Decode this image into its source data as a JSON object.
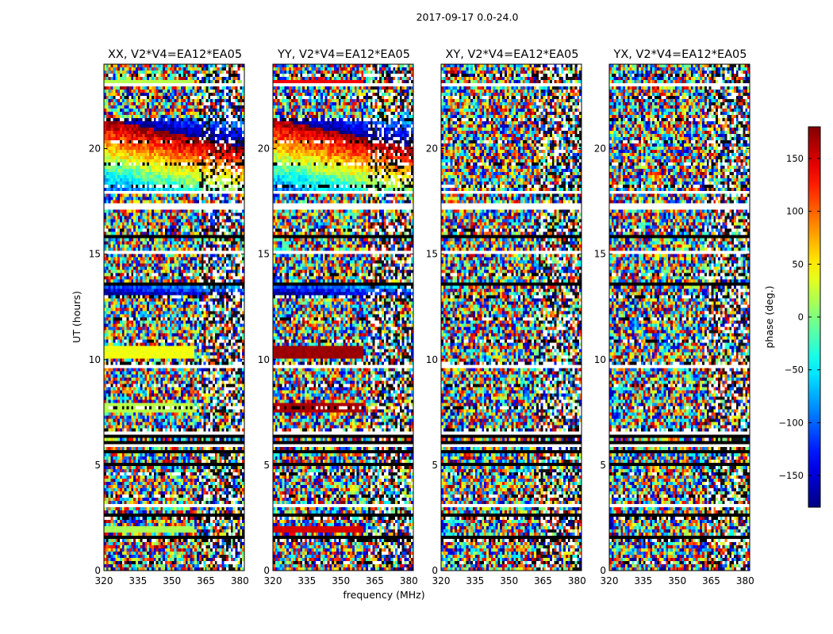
{
  "chart_data": {
    "type": "heatmap",
    "title": "2017-09-17 0.0-24.0",
    "xlabel": "frequency (MHz)",
    "ylabel": "UT (hours)",
    "colorbar_label": "phase (deg.)",
    "colormap": "jet",
    "clim": [
      -180,
      180
    ],
    "colorbar_ticks": [
      -150,
      -100,
      -50,
      0,
      50,
      100,
      150
    ],
    "colorbar_tick_labels": [
      "−150",
      "−100",
      "−50",
      "0",
      "50",
      "100",
      "150"
    ],
    "xlim": [
      320,
      382
    ],
    "ylim": [
      0,
      24
    ],
    "x_ticks": [
      320,
      335,
      350,
      365,
      380
    ],
    "x_tick_labels": [
      "320",
      "335",
      "350",
      "365",
      "380"
    ],
    "y_ticks": [
      0,
      5,
      10,
      15,
      20
    ],
    "y_tick_labels": [
      "0",
      "5",
      "10",
      "15",
      "20"
    ],
    "panels": [
      {
        "title": "XX, V2*V4=EA12*EA05",
        "uniform_bands": [
          {
            "ut": [
              23.0,
              23.3
            ],
            "f_end": 360,
            "phase": 20
          },
          {
            "ut": [
              10.1,
              10.6
            ],
            "f_end": 360,
            "phase": 40
          },
          {
            "ut": [
              7.5,
              7.9
            ],
            "f_end": 360,
            "phase": 20
          },
          {
            "ut": [
              1.8,
              2.1
            ],
            "f_end": 360,
            "phase": 15
          }
        ],
        "fringe_bands": [
          {
            "ut": [
              17.9,
              21.5
            ],
            "slope": 0.9,
            "freq": 0.35
          },
          {
            "ut": [
              13.0,
              13.6
            ],
            "slope": 0.2,
            "freq": 0.8
          }
        ]
      },
      {
        "title": "YY, V2*V4=EA12*EA05",
        "uniform_bands": [
          {
            "ut": [
              23.0,
              23.3
            ],
            "f_end": 360,
            "phase": 140
          },
          {
            "ut": [
              10.1,
              10.6
            ],
            "f_end": 360,
            "phase": 170
          },
          {
            "ut": [
              7.5,
              7.9
            ],
            "f_end": 360,
            "phase": 165
          },
          {
            "ut": [
              1.8,
              2.1
            ],
            "f_end": 360,
            "phase": 150
          }
        ],
        "fringe_bands": [
          {
            "ut": [
              17.9,
              21.5
            ],
            "slope": 0.9,
            "freq": 0.35
          },
          {
            "ut": [
              13.0,
              13.6
            ],
            "slope": 0.2,
            "freq": 0.8
          }
        ]
      },
      {
        "title": "XY, V2*V4=EA12*EA05",
        "uniform_bands": [],
        "fringe_bands": []
      },
      {
        "title": "YX, V2*V4=EA12*EA05",
        "uniform_bands": [],
        "fringe_bands": []
      }
    ],
    "flagged_ut_gaps": [
      [
        23.0,
        23.05
      ],
      [
        17.9,
        18.05
      ],
      [
        17.1,
        17.35
      ],
      [
        15.0,
        15.08
      ],
      [
        10.05,
        10.12
      ],
      [
        9.55,
        9.75
      ],
      [
        6.4,
        6.55
      ],
      [
        5.85,
        5.95
      ],
      [
        4.3,
        4.4
      ],
      [
        4.05,
        4.12
      ],
      [
        3.05,
        3.12
      ],
      [
        0.4,
        0.5
      ]
    ],
    "dark_ut_lines": [
      [
        13.45,
        13.7
      ],
      [
        6.3,
        6.45
      ],
      [
        6.0,
        6.1
      ],
      [
        5.55,
        5.65
      ],
      [
        5.2,
        5.3
      ],
      [
        4.95,
        5.05
      ],
      [
        4.75,
        4.85
      ],
      [
        4.5,
        4.55
      ],
      [
        1.55,
        1.65
      ],
      [
        0.85,
        0.9
      ],
      [
        11.2,
        11.25
      ],
      [
        8.8,
        8.85
      ],
      [
        21.3,
        21.35
      ],
      [
        15.8,
        15.85
      ],
      [
        12.3,
        12.35
      ],
      [
        2.6,
        2.65
      ]
    ]
  }
}
